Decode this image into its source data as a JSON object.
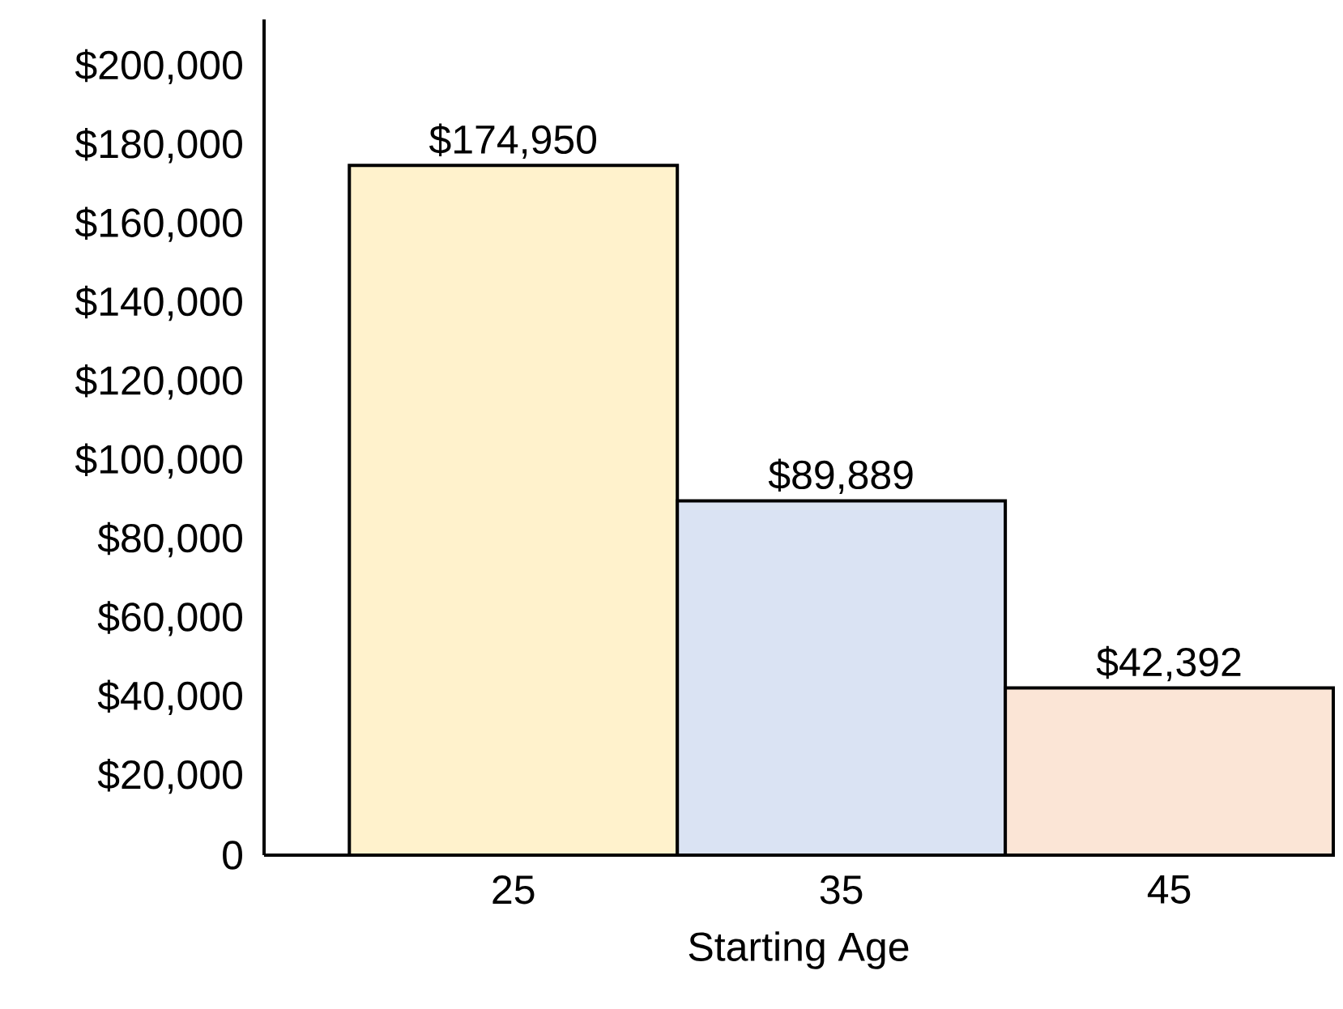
{
  "chart_data": {
    "type": "bar",
    "xlabel": "Starting Age",
    "categories": [
      "25",
      "35",
      "45"
    ],
    "values": [
      174950,
      89889,
      42392
    ],
    "value_labels": [
      "$174,950",
      "$89,889",
      "$42,392"
    ],
    "colors": [
      "#fff2cc",
      "#dae3f3",
      "#fbe5d6"
    ],
    "ylim": [
      0,
      212000
    ],
    "yticks": [
      {
        "value": 0,
        "label": "0"
      },
      {
        "value": 20000,
        "label": "$20,000"
      },
      {
        "value": 40000,
        "label": "$40,000"
      },
      {
        "value": 60000,
        "label": "$60,000"
      },
      {
        "value": 80000,
        "label": "$80,000"
      },
      {
        "value": 100000,
        "label": "$100,000"
      },
      {
        "value": 120000,
        "label": "$120,000"
      },
      {
        "value": 140000,
        "label": "$140,000"
      },
      {
        "value": 160000,
        "label": "$160,000"
      },
      {
        "value": 180000,
        "label": "$180,000"
      },
      {
        "value": 200000,
        "label": "$200,000"
      }
    ],
    "grid": false
  }
}
